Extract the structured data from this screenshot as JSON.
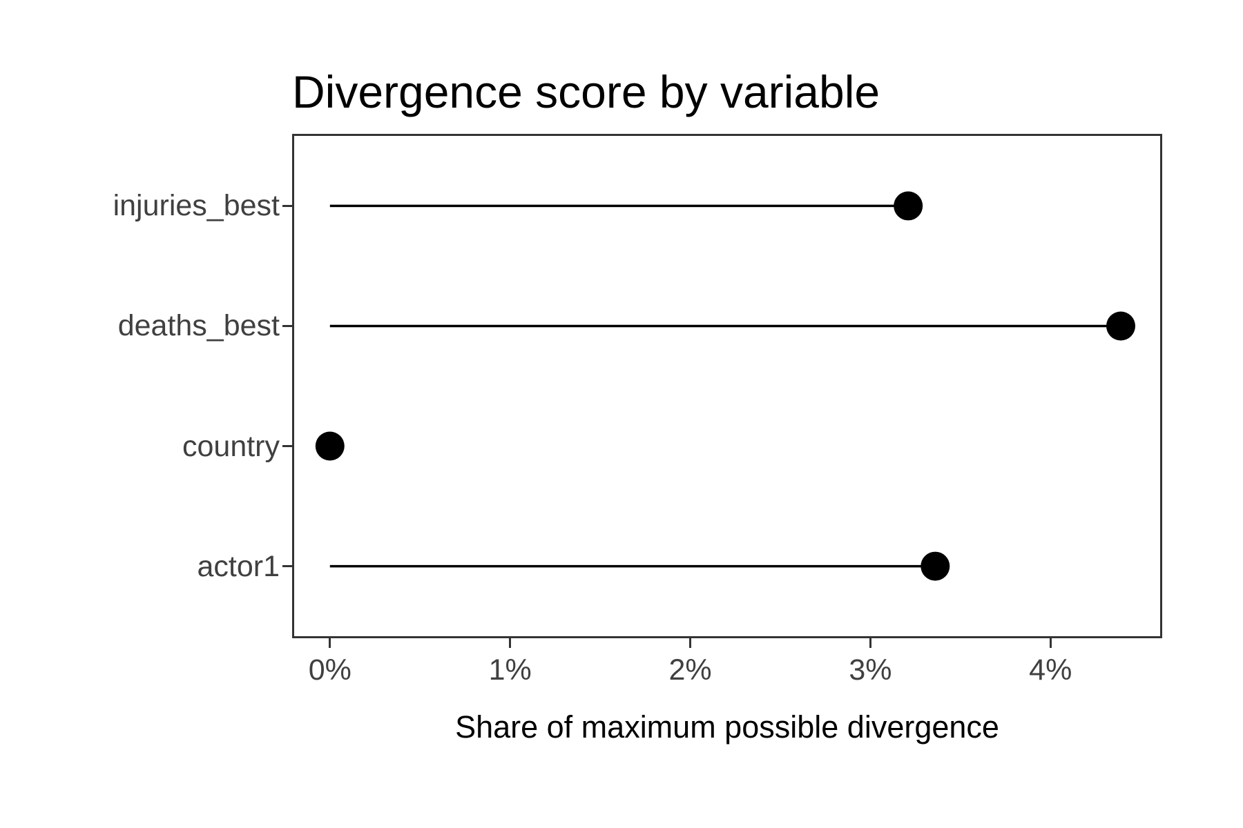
{
  "chart_data": {
    "type": "lollipop",
    "title": "Divergence score by variable",
    "xlabel": "Share of maximum possible divergence",
    "ylabel": "",
    "categories_top_to_bottom": [
      "injuries_best",
      "deaths_best",
      "country",
      "actor1"
    ],
    "values_percent": [
      3.21,
      4.39,
      0.0,
      3.36
    ],
    "x_ticks_percent": [
      0,
      1,
      2,
      3,
      4
    ],
    "x_tick_labels": [
      "0%",
      "1%",
      "2%",
      "3%",
      "4%"
    ],
    "xlim_percent": [
      -0.21,
      4.62
    ],
    "stem_start_percent": 0,
    "grid": false,
    "legend": "none",
    "point_color": "#000000",
    "stem_color": "#000000",
    "panel_border_color": "#333333",
    "axis_text_color": "#404040",
    "title_color": "#000000",
    "background_color": "#ffffff"
  }
}
